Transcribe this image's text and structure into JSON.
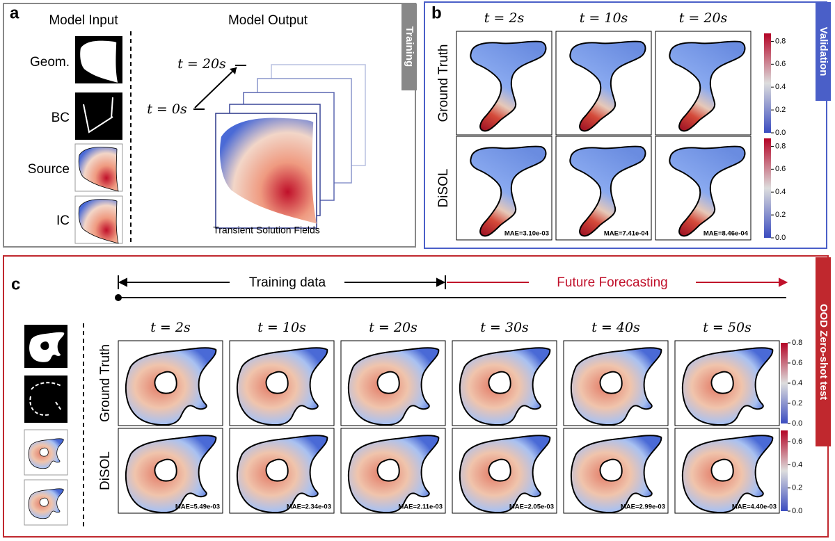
{
  "panel_a": {
    "label": "a",
    "tag": "Training",
    "input_title": "Model Input",
    "output_title": "Model Output",
    "inputs": [
      "Geom.",
      "BC",
      "Source",
      "IC"
    ],
    "t_end": "t = 20s",
    "t_start": "t = 0s",
    "caption": "Transient Solution Fields"
  },
  "panel_b": {
    "label": "b",
    "tag": "Validation",
    "times": [
      "t = 2s",
      "t = 10s",
      "t = 20s"
    ],
    "rows": [
      "Ground Truth",
      "DiSOL"
    ],
    "mae": [
      "MAE=3.10e-03",
      "MAE=7.41e-04",
      "MAE=8.46e-04"
    ],
    "colorbar_ticks": [
      [
        "0.0",
        "0.2",
        "0.4",
        "0.6",
        "0.8"
      ],
      [
        "0.0",
        "0.2",
        "0.4",
        "0.6",
        "0.8"
      ]
    ]
  },
  "panel_c": {
    "label": "c",
    "tag": "OOD Zero-shot test",
    "training_label": "Training data",
    "forecast_label": "Future Forecasting",
    "times": [
      "t = 2s",
      "t = 10s",
      "t = 20s",
      "t = 30s",
      "t = 40s",
      "t = 50s"
    ],
    "rows": [
      "Ground Truth",
      "DiSOL"
    ],
    "mae": [
      "MAE=5.49e-03",
      "MAE=2.34e-03",
      "MAE=2.11e-03",
      "MAE=2.05e-03",
      "MAE=2.99e-03",
      "MAE=4.40e-03"
    ],
    "colorbar_ticks": [
      [
        "0.0",
        "0.2",
        "0.4",
        "0.6",
        "0.8"
      ],
      [
        "0.0",
        "0.2",
        "0.4",
        "0.6"
      ]
    ]
  }
}
